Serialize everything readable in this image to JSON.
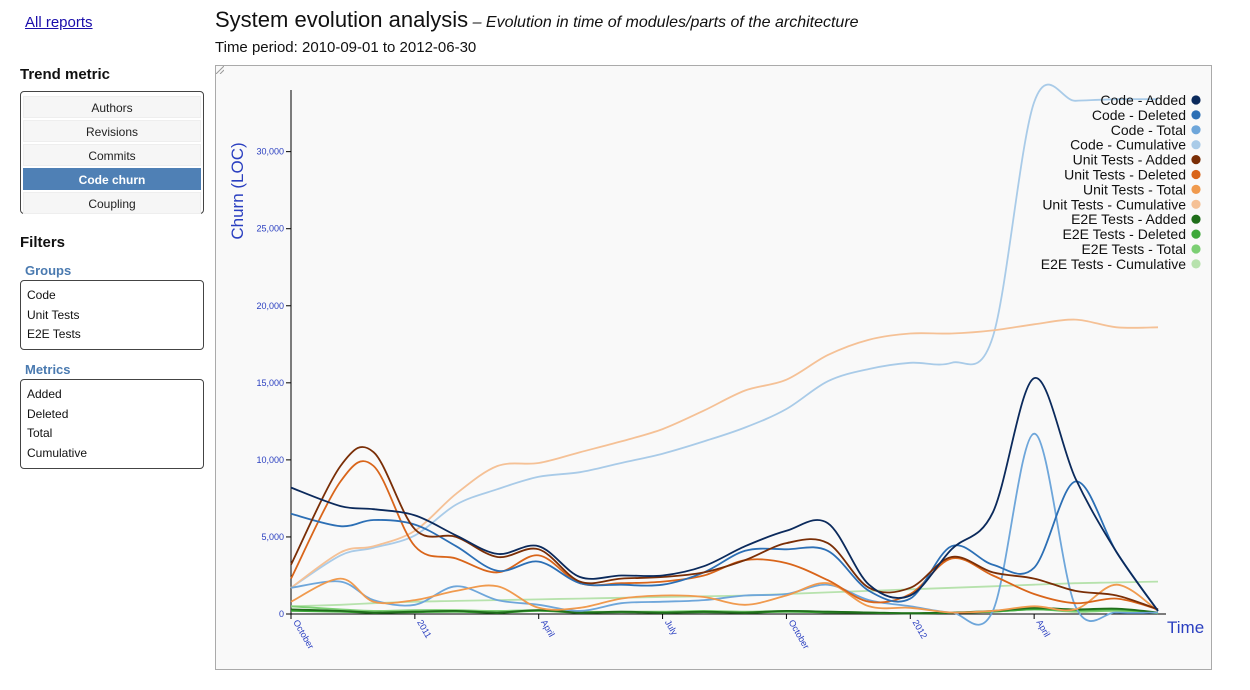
{
  "nav": {
    "all_reports": "All reports"
  },
  "header": {
    "title": "System evolution analysis",
    "subtitle": "– Evolution in time of modules/parts of the architecture",
    "period": "Time period: 2010-09-01 to 2012-06-30"
  },
  "sidebar": {
    "trend_title": "Trend metric",
    "trend_items": [
      "Authors",
      "Revisions",
      "Commits",
      "Code churn",
      "Coupling"
    ],
    "active_trend": "Code churn",
    "filters_title": "Filters",
    "groups_title": "Groups",
    "groups": [
      "Code",
      "Unit Tests",
      "E2E Tests"
    ],
    "metrics_title": "Metrics",
    "metrics": [
      "Added",
      "Deleted",
      "Total",
      "Cumulative"
    ]
  },
  "colors": {
    "accent": "#4f80b5",
    "axis": "#2a3fc0"
  },
  "chart_data": {
    "type": "line",
    "title": "",
    "ylabel": "Churn (LOC)",
    "xlabel": "Time",
    "ylim": [
      0,
      34000
    ],
    "y_ticks": [
      0,
      5000,
      10000,
      15000,
      20000,
      25000,
      30000
    ],
    "x_ticks": [
      {
        "label": "October",
        "t": 0
      },
      {
        "label": "2011",
        "t": 3
      },
      {
        "label": "April",
        "t": 6
      },
      {
        "label": "July",
        "t": 9
      },
      {
        "label": "October",
        "t": 12
      },
      {
        "label": "2012",
        "t": 15
      },
      {
        "label": "April",
        "t": 18
      }
    ],
    "x": [
      0,
      1.2,
      2,
      3,
      4,
      5,
      6,
      7,
      8,
      9,
      10,
      11,
      12,
      13,
      14,
      15,
      16,
      17,
      18,
      19,
      20,
      21
    ],
    "series": [
      {
        "name": "Code - Added",
        "color": "#0b2a5c",
        "values": [
          8200,
          7000,
          6800,
          6400,
          5100,
          3900,
          4400,
          2400,
          2500,
          2500,
          3100,
          4400,
          5400,
          5900,
          1900,
          1200,
          4200,
          6600,
          15300,
          8800,
          4000,
          200
        ]
      },
      {
        "name": "Code - Deleted",
        "color": "#2c6fb5",
        "values": [
          6500,
          5700,
          6100,
          5800,
          4400,
          2800,
          3400,
          2000,
          1900,
          1900,
          2700,
          4100,
          4200,
          4100,
          1500,
          1000,
          4400,
          3200,
          3000,
          8600,
          4000,
          200
        ]
      },
      {
        "name": "Code - Total",
        "color": "#6ea6da",
        "values": [
          1700,
          2100,
          900,
          600,
          1800,
          900,
          600,
          200,
          700,
          800,
          900,
          1200,
          1300,
          1900,
          900,
          500,
          100,
          200,
          11700,
          500,
          100,
          100
        ]
      },
      {
        "name": "Code - Cumulative",
        "color": "#a9cbe8",
        "values": [
          1700,
          3800,
          4300,
          5100,
          7100,
          8100,
          8900,
          9200,
          9800,
          10400,
          11200,
          12100,
          13300,
          15100,
          15900,
          16300,
          16300,
          18000,
          33200,
          33300,
          33400,
          33400
        ]
      },
      {
        "name": "Unit Tests - Added",
        "color": "#7a2e06",
        "values": [
          3200,
          9600,
          10500,
          5500,
          5000,
          3700,
          4200,
          2100,
          2300,
          2400,
          2700,
          3500,
          4600,
          4600,
          1700,
          1700,
          3700,
          2700,
          2300,
          1500,
          1200,
          300
        ]
      },
      {
        "name": "Unit Tests - Deleted",
        "color": "#d9651a",
        "values": [
          2300,
          8600,
          9600,
          4400,
          3600,
          2700,
          3800,
          2000,
          2000,
          2100,
          2500,
          3500,
          3300,
          2200,
          800,
          1300,
          3600,
          2500,
          1300,
          700,
          1000,
          300
        ]
      },
      {
        "name": "Unit Tests - Total",
        "color": "#f09a4e",
        "values": [
          800,
          2300,
          800,
          900,
          1500,
          1800,
          400,
          400,
          1000,
          1200,
          1100,
          600,
          1200,
          2000,
          500,
          400,
          100,
          200,
          500,
          300,
          1900,
          200
        ]
      },
      {
        "name": "Unit Tests - Cumulative",
        "color": "#f5c196",
        "values": [
          1700,
          4000,
          4400,
          5400,
          7800,
          9600,
          9800,
          10500,
          11200,
          12000,
          13200,
          14500,
          15200,
          16800,
          17800,
          18200,
          18200,
          18400,
          18800,
          19100,
          18600,
          18600
        ]
      },
      {
        "name": "E2E Tests - Added",
        "color": "#1f6e1a",
        "values": [
          300,
          200,
          100,
          150,
          200,
          100,
          250,
          100,
          150,
          100,
          150,
          100,
          200,
          150,
          100,
          50,
          100,
          200,
          400,
          300,
          350,
          100
        ]
      },
      {
        "name": "E2E Tests - Deleted",
        "color": "#3ea83a",
        "values": [
          200,
          150,
          80,
          120,
          150,
          80,
          200,
          80,
          120,
          80,
          120,
          80,
          150,
          100,
          80,
          40,
          80,
          150,
          300,
          250,
          300,
          80
        ]
      },
      {
        "name": "E2E Tests - Total",
        "color": "#7ccf73",
        "values": [
          500,
          300,
          200,
          250,
          250,
          200,
          250,
          150,
          150,
          150,
          200,
          150,
          200,
          150,
          100,
          50,
          100,
          150,
          300,
          150,
          200,
          50
        ]
      },
      {
        "name": "E2E Tests - Cumulative",
        "color": "#b7e2ad",
        "values": [
          500,
          600,
          700,
          800,
          850,
          900,
          950,
          1000,
          1050,
          1100,
          1150,
          1200,
          1300,
          1400,
          1500,
          1600,
          1700,
          1800,
          1900,
          2000,
          2050,
          2100
        ]
      }
    ]
  }
}
